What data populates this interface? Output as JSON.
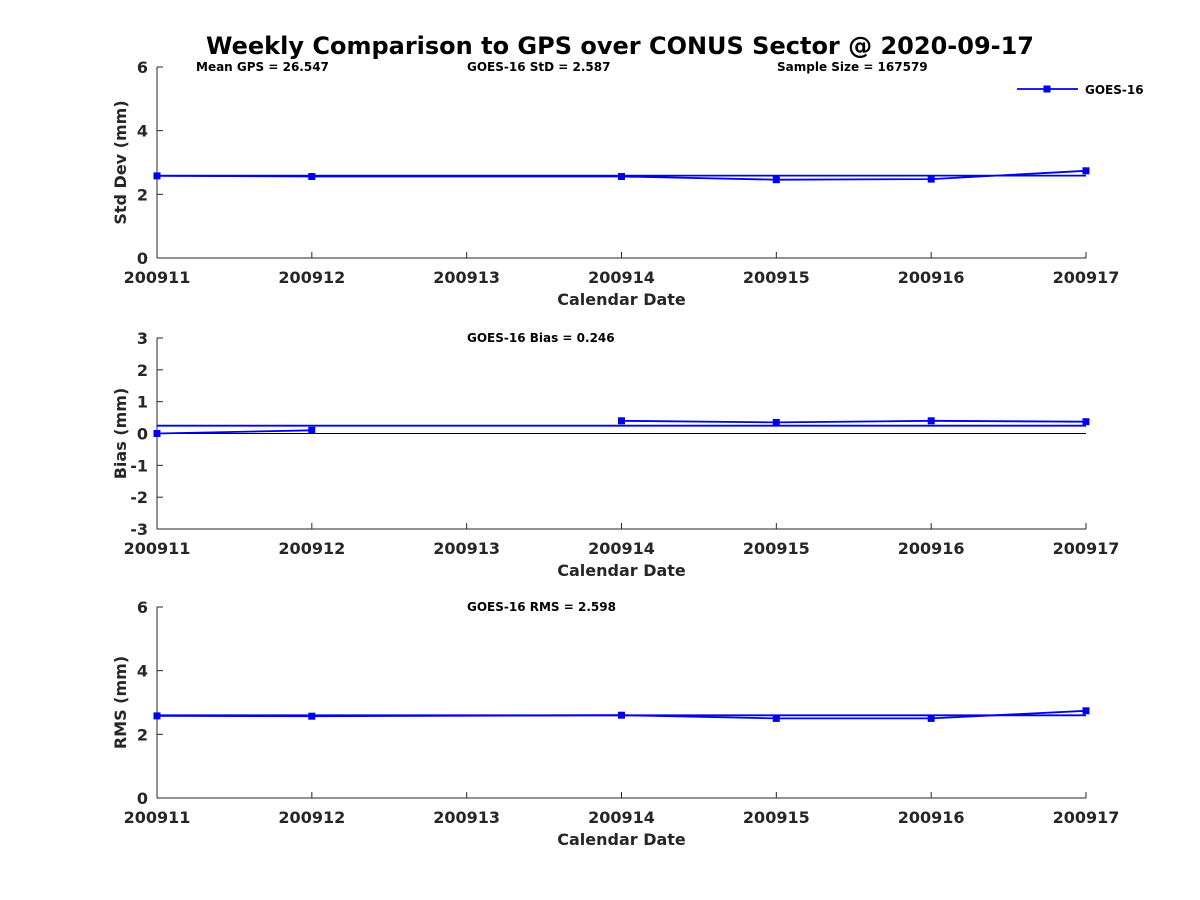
{
  "title": "Weekly Comparison to GPS over CONUS Sector @ 2020-09-17",
  "colors": {
    "series": "#0000ee",
    "axis": "#262626"
  },
  "legend": {
    "placement": "top-right"
  },
  "chart_data": [
    {
      "type": "line",
      "xlabel": "Calendar Date",
      "ylabel": "Std Dev (mm)",
      "ylim": [
        0,
        6
      ],
      "yticks": [
        0,
        2,
        4,
        6
      ],
      "categories": [
        "200911",
        "200912",
        "200913",
        "200914",
        "200915",
        "200916",
        "200917"
      ],
      "annotations": [
        "Mean GPS = 26.547",
        "GOES-16 StD = 2.587",
        "Sample Size = 167579"
      ],
      "series": [
        {
          "name": "GOES-16",
          "marker": "square",
          "x": [
            "200911",
            "200912",
            "200914",
            "200915",
            "200916",
            "200917"
          ],
          "values": [
            2.58,
            2.56,
            2.56,
            2.46,
            2.48,
            2.74
          ]
        },
        {
          "marker": "none",
          "x": [
            "200911",
            "200917"
          ],
          "values": [
            2.587,
            2.587
          ]
        }
      ]
    },
    {
      "type": "line",
      "xlabel": "Calendar Date",
      "ylabel": "Bias (mm)",
      "ylim": [
        -3,
        3
      ],
      "yticks": [
        -3,
        -2,
        -1,
        0,
        1,
        2,
        3
      ],
      "categories": [
        "200911",
        "200912",
        "200913",
        "200914",
        "200915",
        "200916",
        "200917"
      ],
      "annotations": [
        "GOES-16 Bias  = 0.246"
      ],
      "series": [
        {
          "marker": "square",
          "x": [
            "200911",
            "200912"
          ],
          "values": [
            0.0,
            0.1
          ]
        },
        {
          "marker": "square",
          "x": [
            "200914",
            "200915",
            "200916",
            "200917"
          ],
          "values": [
            0.4,
            0.35,
            0.4,
            0.37
          ]
        },
        {
          "marker": "none",
          "x": [
            "200911",
            "200917"
          ],
          "values": [
            0.246,
            0.246
          ]
        }
      ],
      "zero_line": true
    },
    {
      "type": "line",
      "xlabel": "Calendar Date",
      "ylabel": "RMS (mm)",
      "ylim": [
        0,
        6
      ],
      "yticks": [
        0,
        2,
        4,
        6
      ],
      "categories": [
        "200911",
        "200912",
        "200913",
        "200914",
        "200915",
        "200916",
        "200917"
      ],
      "annotations": [
        "GOES-16 RMS = 2.598"
      ],
      "series": [
        {
          "marker": "square",
          "x": [
            "200911",
            "200912",
            "200914",
            "200915",
            "200916",
            "200917"
          ],
          "values": [
            2.58,
            2.57,
            2.6,
            2.5,
            2.5,
            2.74
          ]
        },
        {
          "marker": "none",
          "x": [
            "200911",
            "200917"
          ],
          "values": [
            2.598,
            2.598
          ]
        }
      ]
    }
  ]
}
